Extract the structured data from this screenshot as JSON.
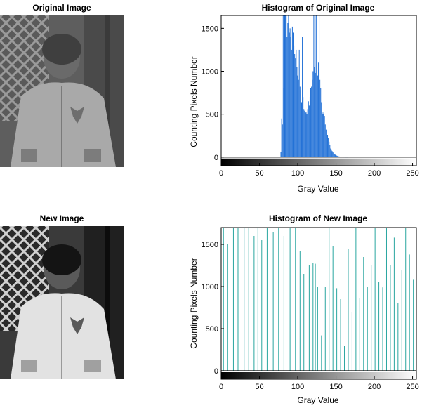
{
  "images": {
    "original_title": "Original Image",
    "new_title": "New Image"
  },
  "colors": {
    "original_bars": "#1f6fd6",
    "new_bars": "#2aa6a0",
    "axis": "#000000"
  },
  "chart_data": [
    {
      "type": "bar",
      "title": "Histogram of Original Image",
      "xlabel": "Gray Value",
      "ylabel": "Counting Pixels Number",
      "xlim": [
        0,
        255
      ],
      "ylim": [
        -100,
        1650
      ],
      "xticks": [
        0,
        50,
        100,
        150,
        200,
        250
      ],
      "yticks": [
        0,
        500,
        1000,
        1500
      ],
      "colorbar": "grayscale 0-255",
      "series": [
        {
          "x": [
            78,
            79,
            80,
            81,
            82,
            83,
            84,
            85,
            86,
            87,
            88,
            89,
            90,
            91,
            92,
            93,
            94,
            95,
            96,
            97,
            98,
            99,
            100,
            101,
            102,
            103,
            104,
            105,
            106,
            107,
            108,
            109,
            110,
            111,
            112,
            113,
            114,
            115,
            116,
            117,
            118,
            119,
            120,
            121,
            122,
            123,
            124,
            125,
            126,
            127,
            128,
            129,
            130,
            131,
            132,
            133,
            134,
            135,
            136,
            137,
            138,
            139,
            140,
            141,
            142,
            143,
            144,
            145,
            146,
            147,
            148,
            149,
            150,
            151,
            152,
            153,
            154,
            155,
            156,
            157,
            158,
            159,
            160,
            161,
            162,
            163,
            164,
            165
          ],
          "values": [
            60,
            450,
            380,
            1650,
            800,
            1650,
            1650,
            1650,
            1400,
            1560,
            1650,
            1450,
            1500,
            1400,
            1250,
            1520,
            1450,
            1300,
            1200,
            1150,
            1250,
            1050,
            950,
            900,
            1250,
            820,
            780,
            640,
            1400,
            700,
            560,
            540,
            520,
            520,
            500,
            560,
            650,
            600,
            700,
            800,
            820,
            900,
            1000,
            1650,
            1050,
            980,
            1650,
            1650,
            950,
            1100,
            1650,
            900,
            800,
            640,
            520,
            500,
            520,
            480,
            380,
            320,
            280,
            260,
            220,
            180,
            140,
            100,
            90,
            70,
            55,
            45,
            35,
            28,
            22,
            18,
            14,
            10,
            8,
            6,
            5,
            4,
            3,
            3,
            2,
            2,
            2,
            1,
            1,
            1
          ]
        }
      ]
    },
    {
      "type": "bar",
      "title": "Histogram of New Image",
      "xlabel": "Gray Value",
      "ylabel": "Counting Pixels Number",
      "xlim": [
        0,
        255
      ],
      "ylim": [
        -100,
        1700
      ],
      "xticks": [
        0,
        50,
        100,
        150,
        200,
        250
      ],
      "yticks": [
        0,
        500,
        1000,
        1500
      ],
      "colorbar": "grayscale 0-255",
      "series": [
        {
          "x": [
            3,
            8,
            16,
            22,
            30,
            36,
            43,
            48,
            53,
            60,
            68,
            75,
            82,
            90,
            97,
            103,
            108,
            115,
            120,
            123,
            126,
            131,
            136,
            141,
            146,
            151,
            156,
            161,
            166,
            171,
            176,
            181,
            186,
            191,
            196,
            201,
            206,
            211,
            216,
            221,
            226,
            231,
            236,
            241,
            246,
            251
          ],
          "values": [
            1700,
            1500,
            1700,
            1700,
            1700,
            1700,
            1600,
            1700,
            1550,
            1700,
            1650,
            1700,
            1600,
            1700,
            1700,
            1420,
            1150,
            1250,
            1280,
            1270,
            1000,
            420,
            1000,
            1700,
            1480,
            980,
            850,
            300,
            1450,
            700,
            1700,
            860,
            1350,
            1000,
            1250,
            1700,
            1050,
            990,
            1700,
            1250,
            1580,
            800,
            1200,
            1700,
            1380,
            1080
          ]
        }
      ]
    }
  ]
}
